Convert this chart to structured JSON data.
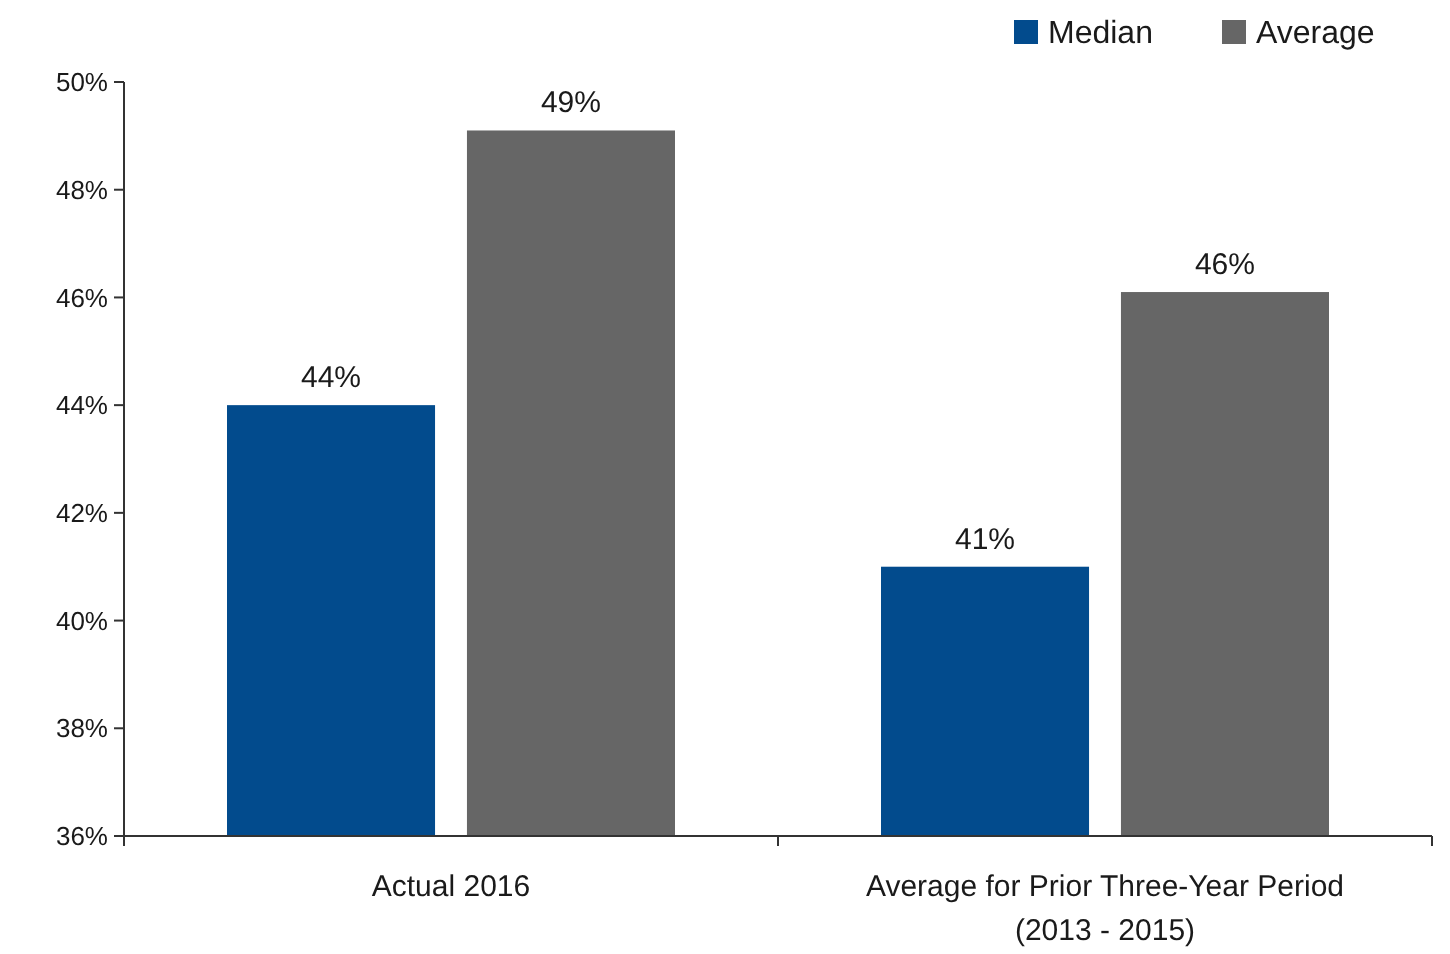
{
  "chart_data": {
    "type": "bar",
    "categories": [
      "Actual 2016",
      "Average for Prior Three-Year Period\n(2013 - 2015)"
    ],
    "series": [
      {
        "name": "Median",
        "color": "#024b8d",
        "values": [
          44,
          41
        ],
        "value_labels": [
          "44%",
          "41%"
        ]
      },
      {
        "name": "Average",
        "color": "#666666",
        "values": [
          49.1,
          46.1
        ],
        "value_labels": [
          "49%",
          "46%"
        ]
      }
    ],
    "ylim": [
      36,
      50
    ],
    "yticks": [
      {
        "value": 36,
        "label": "36%"
      },
      {
        "value": 38,
        "label": "38%"
      },
      {
        "value": 40,
        "label": "40%"
      },
      {
        "value": 42,
        "label": "42%"
      },
      {
        "value": 44,
        "label": "44%"
      },
      {
        "value": 46,
        "label": "46%"
      },
      {
        "value": 48,
        "label": "48%"
      },
      {
        "value": 50,
        "label": "50%"
      }
    ],
    "legend": "top right"
  }
}
